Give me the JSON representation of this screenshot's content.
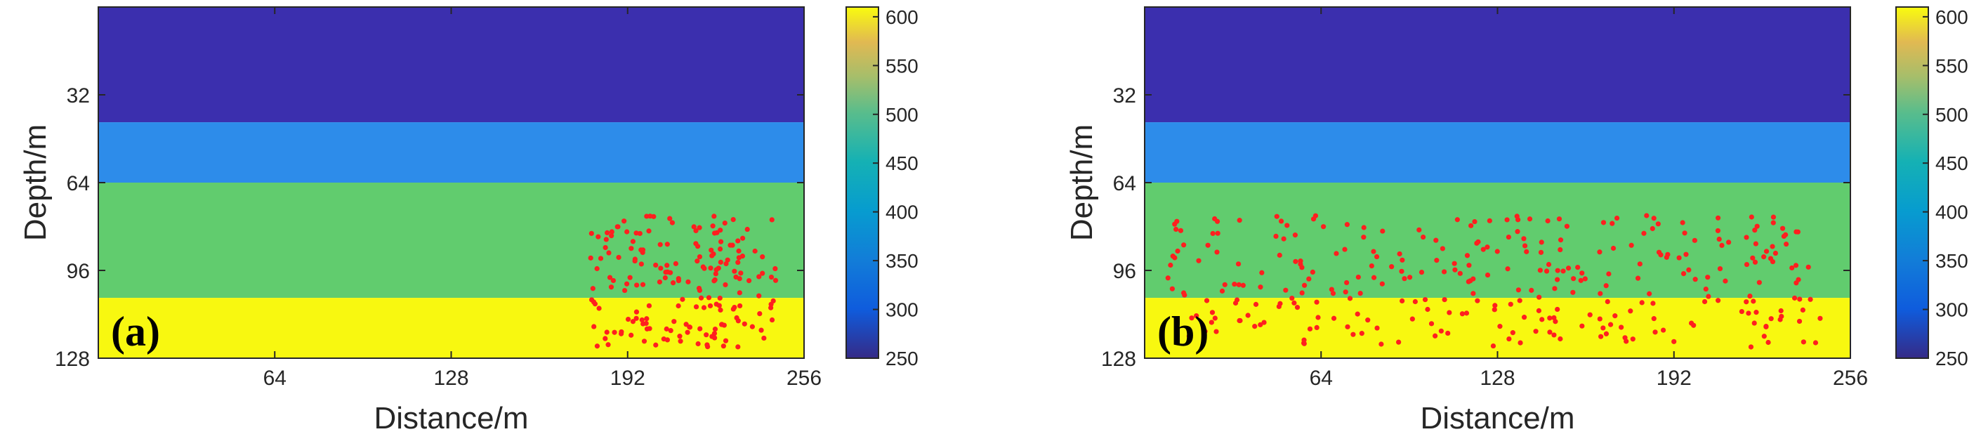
{
  "colors": {
    "background": "#ffffff",
    "axis": "#262626",
    "points": "#ff1f1f",
    "layer_colors": [
      "#3b2fae",
      "#2d8cea",
      "#61cc6e",
      "#f8f810"
    ]
  },
  "colorbar": {
    "ticks": [
      250,
      300,
      350,
      400,
      450,
      500,
      550,
      600
    ],
    "range": [
      250,
      610
    ],
    "colormap": "parula"
  },
  "chart_data": [
    {
      "type": "heatmap",
      "panel_label": "(a)",
      "xlabel": "Distance/m",
      "ylabel": "Depth/m",
      "xlim": [
        0,
        256
      ],
      "ylim": [
        0,
        128
      ],
      "xticks": [
        64,
        128,
        192,
        256
      ],
      "yticks": [
        32,
        64,
        96,
        128
      ],
      "layers": [
        {
          "top": 0,
          "bottom": 42,
          "value": 265
        },
        {
          "top": 42,
          "bottom": 64,
          "value": 340
        },
        {
          "top": 64,
          "bottom": 106,
          "value": 475
        },
        {
          "top": 106,
          "bottom": 128,
          "value": 605
        }
      ],
      "points_region": {
        "x": [
          178,
          246
        ],
        "y": [
          76,
          124
        ]
      }
    },
    {
      "type": "heatmap",
      "panel_label": "(b)",
      "xlabel": "Distance/m",
      "ylabel": "Depth/m",
      "xlim": [
        0,
        256
      ],
      "ylim": [
        0,
        128
      ],
      "xticks": [
        64,
        128,
        192,
        256
      ],
      "yticks": [
        32,
        64,
        96,
        128
      ],
      "layers": [
        {
          "top": 0,
          "bottom": 42,
          "value": 265
        },
        {
          "top": 42,
          "bottom": 64,
          "value": 340
        },
        {
          "top": 64,
          "bottom": 106,
          "value": 475
        },
        {
          "top": 106,
          "bottom": 128,
          "value": 605
        }
      ],
      "points_region": {
        "x": [
          8,
          246
        ],
        "y": [
          76,
          124
        ]
      }
    }
  ]
}
